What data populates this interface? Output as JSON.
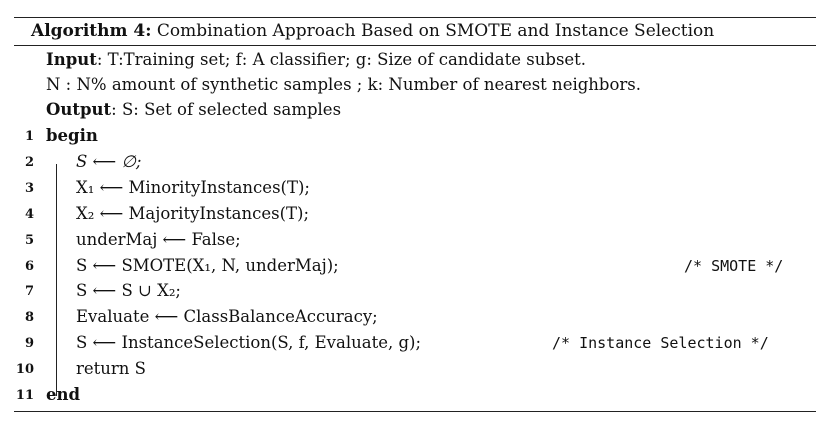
{
  "algorithm": {
    "label": "Algorithm 4:",
    "title": "Combination Approach Based on SMOTE and Instance Selection"
  },
  "io": {
    "input_label": "Input",
    "input_text": ": T:Training set; f: A classifier; g: Size of candidate subset.",
    "input_text2": "N : N% amount of synthetic samples ; k: Number of nearest neighbors.",
    "output_label": "Output",
    "output_text": ": S: Set of selected samples"
  },
  "lines": [
    {
      "num": "1",
      "text": "begin"
    },
    {
      "num": "2",
      "text": "S ⟵ ∅;"
    },
    {
      "num": "3",
      "text": "X₁ ⟵ MinorityInstances(T);"
    },
    {
      "num": "4",
      "text": "X₂ ⟵ MajorityInstances(T);"
    },
    {
      "num": "5",
      "text": "underMaj ⟵ False;"
    },
    {
      "num": "6",
      "text": "S ⟵ SMOTE(X₁, N, underMaj);",
      "comment": "/* SMOTE */"
    },
    {
      "num": "7",
      "text": "S ⟵ S ∪ X₂;"
    },
    {
      "num": "8",
      "text": "Evaluate ⟵ ClassBalanceAccuracy;"
    },
    {
      "num": "9",
      "text": "S ⟵ InstanceSelection(S, f, Evaluate, g);",
      "comment": "/* Instance Selection */"
    },
    {
      "num": "10",
      "text": "return S"
    },
    {
      "num": "11",
      "text": "end"
    }
  ]
}
